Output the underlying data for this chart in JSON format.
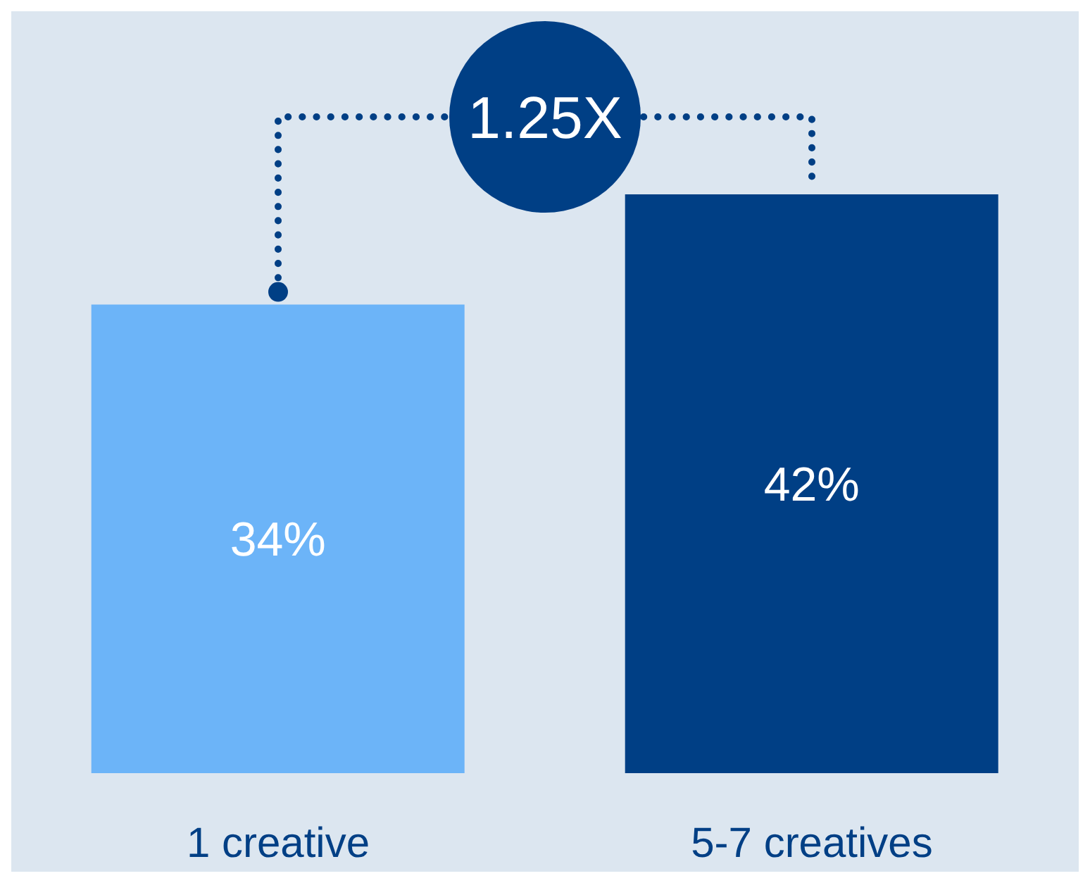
{
  "chart_data": {
    "type": "bar",
    "categories": [
      "1 creative",
      "5-7 creatives"
    ],
    "values": [
      34,
      42
    ],
    "colors": [
      "#6cb4f8",
      "#003f85"
    ],
    "value_labels": [
      "34%",
      "42%"
    ],
    "annotations": [
      "1.25X"
    ]
  }
}
